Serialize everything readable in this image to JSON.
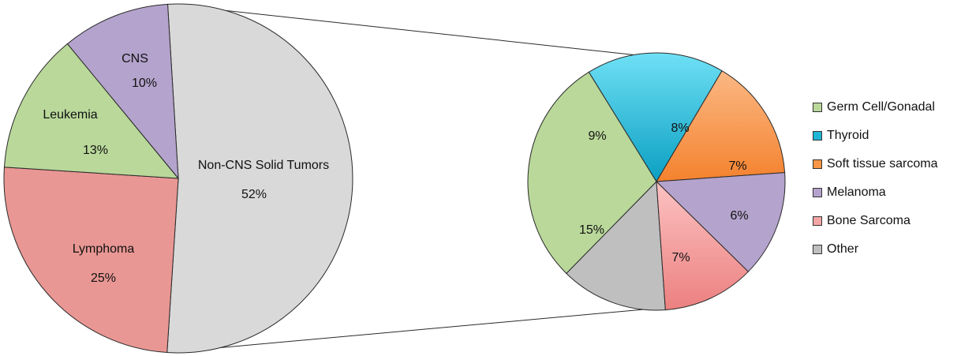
{
  "chart_data": [
    {
      "type": "pie",
      "slices": [
        {
          "label": "Non-CNS Solid Tumors",
          "value": 52,
          "value_label": "52%",
          "color": "#d9d9d9"
        },
        {
          "label": "Lymphoma",
          "value": 25,
          "value_label": "25%",
          "color": "#e99794"
        },
        {
          "label": "Leukemia",
          "value": 13,
          "value_label": "13%",
          "color": "#b9d89a"
        },
        {
          "label": "CNS",
          "value": 10,
          "value_label": "10%",
          "color": "#b4a3cc"
        }
      ],
      "exploded_slice": "Non-CNS Solid Tumors"
    },
    {
      "type": "pie",
      "slices": [
        {
          "label": "Germ Cell/Gonadal",
          "value": 15,
          "value_label": "15%",
          "color": "#b9d89a"
        },
        {
          "label": "Thyroid",
          "value": 9,
          "value_label": "9%",
          "color": "#1fb6d6"
        },
        {
          "label": "Soft tissue sarcoma",
          "value": 8,
          "value_label": "8%",
          "color": "#f79646"
        },
        {
          "label": "Melanoma",
          "value": 7,
          "value_label": "7%",
          "color": "#b4a3cc"
        },
        {
          "label": "Bone Sarcoma",
          "value": 6,
          "value_label": "6%",
          "color": "#f4a6a6"
        },
        {
          "label": "Other",
          "value": 7,
          "value_label": "7%",
          "color": "#bfbfbf"
        }
      ],
      "legend_position": "right"
    }
  ]
}
